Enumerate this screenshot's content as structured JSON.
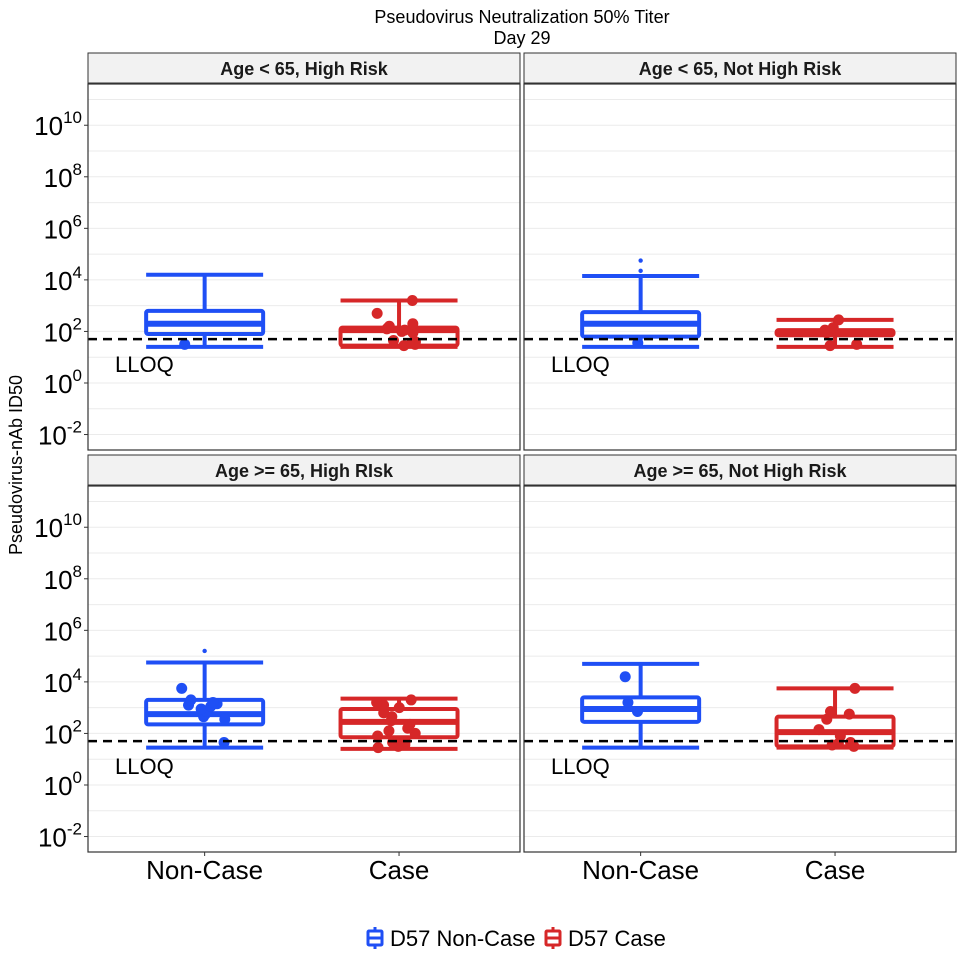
{
  "chart_data": {
    "type": "boxplot",
    "title": "Pseudovirus Neutralization 50% Titer",
    "subtitle": "Day 29",
    "ylabel": "Pseudovirus-nAb ID50",
    "y_scale": "log10",
    "ylim_log10": [
      -2.6,
      11.6
    ],
    "yticks": [
      {
        "base": "10",
        "exp": "-2",
        "value": -2
      },
      {
        "base": "10",
        "exp": "0",
        "value": 0
      },
      {
        "base": "10",
        "exp": "2",
        "value": 2
      },
      {
        "base": "10",
        "exp": "4",
        "value": 4
      },
      {
        "base": "10",
        "exp": "6",
        "value": 6
      },
      {
        "base": "10",
        "exp": "8",
        "value": 8
      },
      {
        "base": "10",
        "exp": "10",
        "value": 10
      }
    ],
    "categories": [
      "Non-Case",
      "Case"
    ],
    "lloq": {
      "label": "LLOQ",
      "log10": 1.7
    },
    "legend": {
      "position": "bottom",
      "items": [
        {
          "label": "D57 Non-Case",
          "color": "#1f4ff5"
        },
        {
          "label": "D57 Case",
          "color": "#d62728"
        }
      ]
    },
    "colors": {
      "noncase": "#1f4ff5",
      "case": "#d62728"
    },
    "panels": [
      {
        "title": "Age < 65, High Risk",
        "boxes": [
          {
            "category": "Non-Case",
            "whisker_low": 1.4,
            "q1": 1.9,
            "median": 2.3,
            "q3": 2.8,
            "whisker_high": 4.2,
            "outliers": [],
            "points": [
              1.5
            ]
          },
          {
            "category": "Case",
            "whisker_low": 1.4,
            "q1": 1.45,
            "median": 2.05,
            "q3": 2.15,
            "whisker_high": 3.2,
            "outliers": [],
            "points": [
              1.45,
              1.5,
              1.55,
              1.6,
              1.65,
              1.95,
              2.0,
              2.05,
              2.1,
              2.15,
              2.2,
              2.3,
              2.7,
              3.2
            ]
          }
        ]
      },
      {
        "title": "Age < 65, Not High Risk",
        "boxes": [
          {
            "category": "Non-Case",
            "whisker_low": 1.4,
            "q1": 1.8,
            "median": 2.3,
            "q3": 2.75,
            "whisker_high": 4.15,
            "outliers": [
              4.75,
              4.35
            ],
            "points": [
              1.55
            ]
          },
          {
            "category": "Case",
            "whisker_low": 1.4,
            "q1": 1.85,
            "median": 1.95,
            "q3": 2.05,
            "whisker_high": 2.45,
            "outliers": [],
            "points": [
              1.45,
              1.5,
              1.95,
              2.05,
              2.15,
              2.45
            ]
          }
        ]
      },
      {
        "title": "Age >= 65, High RIsk",
        "boxes": [
          {
            "category": "Non-Case",
            "whisker_low": 1.45,
            "q1": 2.35,
            "median": 2.75,
            "q3": 3.3,
            "whisker_high": 4.75,
            "outliers": [
              5.2
            ],
            "points": [
              1.65,
              2.55,
              2.65,
              2.75,
              2.85,
              2.95,
              3.05,
              3.1,
              3.15,
              3.2,
              3.3,
              3.75
            ]
          },
          {
            "category": "Case",
            "whisker_low": 1.4,
            "q1": 1.85,
            "median": 2.45,
            "q3": 2.95,
            "whisker_high": 3.35,
            "outliers": [],
            "points": [
              1.45,
              1.5,
              1.55,
              1.6,
              1.65,
              1.7,
              1.9,
              2.0,
              2.1,
              2.2,
              2.35,
              2.5,
              2.65,
              2.8,
              3.0,
              3.1,
              3.2,
              3.3
            ]
          }
        ]
      },
      {
        "title": "Age >= 65, Not High Risk",
        "boxes": [
          {
            "category": "Non-Case",
            "whisker_low": 1.45,
            "q1": 2.45,
            "median": 2.95,
            "q3": 3.4,
            "whisker_high": 4.7,
            "outliers": [],
            "points": [
              2.85,
              3.2,
              4.2
            ]
          },
          {
            "category": "Case",
            "whisker_low": 1.45,
            "q1": 1.5,
            "median": 2.05,
            "q3": 2.65,
            "whisker_high": 3.75,
            "outliers": [],
            "points": [
              1.5,
              1.55,
              1.6,
              1.65,
              1.9,
              2.15,
              2.55,
              2.75,
              2.85,
              3.75
            ]
          }
        ]
      }
    ]
  }
}
